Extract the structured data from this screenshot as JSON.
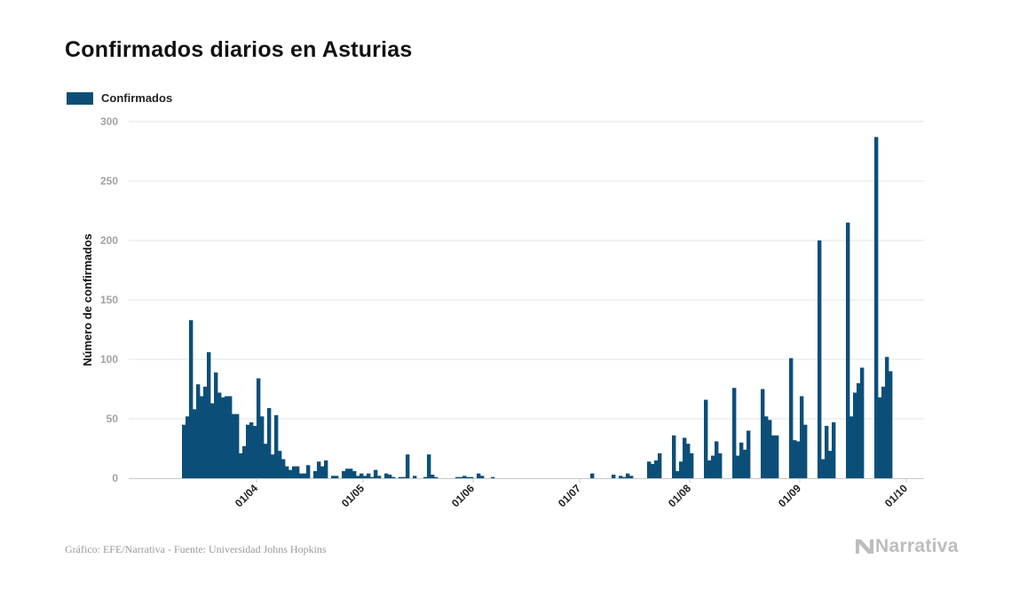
{
  "colors": {
    "bar": "#0b4f79",
    "grid": "#e6e6e6",
    "axis": "#c9c9c9"
  },
  "chart_data": {
    "type": "bar",
    "title": "Confirmados diarios en Asturias",
    "legend": {
      "label": "Confirmados",
      "placement": "top-left"
    },
    "ylabel": "Número de confirmados",
    "xlabel": "",
    "ylim": [
      0,
      300
    ],
    "yticks": [
      0,
      50,
      100,
      150,
      200,
      250,
      300
    ],
    "x_range": [
      "2020-02-25",
      "2020-10-06"
    ],
    "xticks": [
      {
        "date": "2020-04-01",
        "label": "01/04"
      },
      {
        "date": "2020-05-01",
        "label": "01/05"
      },
      {
        "date": "2020-06-01",
        "label": "01/06"
      },
      {
        "date": "2020-07-01",
        "label": "01/07"
      },
      {
        "date": "2020-08-01",
        "label": "01/08"
      },
      {
        "date": "2020-09-01",
        "label": "01/09"
      },
      {
        "date": "2020-10-01",
        "label": "01/10"
      }
    ],
    "start_date": "2020-03-11",
    "values": [
      45,
      52,
      133,
      58,
      79,
      69,
      77,
      106,
      63,
      89,
      72,
      68,
      69,
      69,
      54,
      54,
      21,
      27,
      45,
      47,
      44,
      84,
      52,
      29,
      59,
      20,
      53,
      23,
      16,
      10,
      7,
      10,
      10,
      4,
      4,
      11,
      0,
      6,
      14,
      10,
      15,
      0,
      2,
      2,
      0,
      6,
      8,
      8,
      6,
      2,
      4,
      2,
      4,
      1,
      7,
      2,
      0,
      4,
      3,
      1,
      0,
      1,
      1,
      20,
      0,
      2,
      0,
      0,
      1,
      20,
      3,
      1,
      0,
      0,
      0,
      0,
      0,
      1,
      1,
      2,
      1,
      1,
      0,
      4,
      2,
      0,
      0,
      1,
      0,
      0,
      0,
      0,
      0,
      0,
      0,
      0,
      0,
      0,
      0,
      0,
      0,
      0,
      0,
      0,
      0,
      0,
      0,
      0,
      0,
      0,
      0,
      0,
      0,
      0,
      0,
      4,
      0,
      0,
      0,
      0,
      0,
      3,
      0,
      2,
      1,
      4,
      2,
      0,
      0,
      0,
      0,
      14,
      12,
      15,
      21,
      0,
      0,
      0,
      36,
      6,
      14,
      34,
      29,
      21,
      0,
      0,
      0,
      66,
      15,
      19,
      31,
      21,
      0,
      0,
      0,
      76,
      19,
      30,
      24,
      40,
      0,
      0,
      0,
      75,
      52,
      49,
      36,
      36,
      0,
      0,
      0,
      101,
      32,
      31,
      69,
      45,
      0,
      0,
      0,
      200,
      16,
      44,
      23,
      47,
      0,
      0,
      0,
      215,
      52,
      72,
      80,
      93,
      0,
      0,
      0,
      287,
      68,
      77,
      102,
      90
    ]
  },
  "source": "Gráfico: EFE/Narrativa - Fuente: Universidad Johns Hopkins",
  "brand": {
    "name": "Narrativa",
    "icon": "narrativa-logo-icon"
  }
}
